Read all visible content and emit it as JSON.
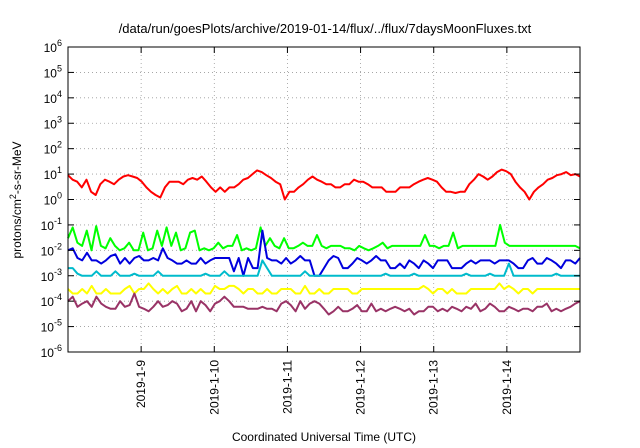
{
  "chart_data": {
    "type": "line",
    "title": "/data/run/goesPlots/archive/2019-01-14/flux/../flux/7daysMoonFluxes.txt",
    "xlabel": "Coordinated Universal Time (UTC)",
    "ylabel": "protons/cm2-s-sr-MeV",
    "ylabel_parts": {
      "pre": "protons/cm",
      "sup": "2",
      "post": "-s-sr-MeV"
    },
    "y_scale": "log",
    "ylim": [
      1e-06,
      1000000.0
    ],
    "y_ticks": [
      {
        "base": "10",
        "exp": "-6"
      },
      {
        "base": "10",
        "exp": "-5"
      },
      {
        "base": "10",
        "exp": "-4"
      },
      {
        "base": "10",
        "exp": "-3"
      },
      {
        "base": "10",
        "exp": "-2"
      },
      {
        "base": "10",
        "exp": "-1"
      },
      {
        "base": "10",
        "exp": "0"
      },
      {
        "base": "10",
        "exp": "1"
      },
      {
        "base": "10",
        "exp": "2"
      },
      {
        "base": "10",
        "exp": "3"
      },
      {
        "base": "10",
        "exp": "4"
      },
      {
        "base": "10",
        "exp": "5"
      },
      {
        "base": "10",
        "exp": "6"
      }
    ],
    "xlim": [
      "2019-01-08T00:00",
      "2019-01-15T00:00"
    ],
    "x_ticks": [
      "2019-1-9",
      "2019-1-10",
      "2019-1-11",
      "2019-1-12",
      "2019-1-13",
      "2019-1-14"
    ],
    "grid": true,
    "legend": "none",
    "series": [
      {
        "color": "#ff0000",
        "values": [
          9,
          6,
          5,
          3,
          6,
          2,
          1.5,
          4,
          6,
          5,
          4,
          6,
          8,
          9,
          8,
          7,
          5,
          3,
          2,
          1.5,
          1.2,
          3,
          5,
          5,
          5,
          4,
          6,
          7,
          6,
          8,
          5,
          3,
          2,
          3,
          2,
          3,
          3,
          4,
          6,
          7,
          10,
          14,
          12,
          9,
          7,
          5,
          4,
          1,
          2,
          2,
          3,
          4,
          6,
          8,
          6,
          5,
          4,
          4,
          3,
          3,
          4,
          4,
          6,
          5,
          5,
          4,
          3,
          3,
          3,
          2,
          2,
          2,
          3,
          3,
          3,
          4,
          5,
          6,
          7,
          6,
          5,
          3,
          2,
          2,
          1.8,
          2,
          2,
          4,
          6,
          10,
          8,
          6,
          8,
          12,
          15,
          13,
          10,
          5,
          3,
          2,
          1,
          2,
          3,
          4,
          6,
          7,
          9,
          10,
          12,
          9,
          10,
          8
        ]
      },
      {
        "color": "#00ff00",
        "values": [
          0.03,
          0.08,
          0.02,
          0.015,
          0.06,
          0.01,
          0.09,
          0.015,
          0.012,
          0.03,
          0.015,
          0.01,
          0.012,
          0.02,
          0.01,
          0.01,
          0.05,
          0.01,
          0.012,
          0.06,
          0.015,
          0.08,
          0.015,
          0.05,
          0.01,
          0.012,
          0.05,
          0.06,
          0.01,
          0.012,
          0.01,
          0.012,
          0.02,
          0.012,
          0.015,
          0.015,
          0.04,
          0.01,
          0.012,
          0.01,
          0.012,
          0.08,
          0.015,
          0.03,
          0.015,
          0.012,
          0.03,
          0.012,
          0.012,
          0.015,
          0.02,
          0.015,
          0.015,
          0.04,
          0.015,
          0.012,
          0.015,
          0.015,
          0.015,
          0.012,
          0.012,
          0.01,
          0.015,
          0.012,
          0.01,
          0.012,
          0.015,
          0.02,
          0.012,
          0.015,
          0.015,
          0.015,
          0.015,
          0.015,
          0.015,
          0.015,
          0.04,
          0.015,
          0.015,
          0.012,
          0.015,
          0.015,
          0.05,
          0.012,
          0.015,
          0.015,
          0.015,
          0.015,
          0.015,
          0.015,
          0.015,
          0.015,
          0.1,
          0.02,
          0.015,
          0.015,
          0.015,
          0.015,
          0.015,
          0.015,
          0.015,
          0.015,
          0.015,
          0.015,
          0.015,
          0.015,
          0.015,
          0.015,
          0.015,
          0.012
        ]
      },
      {
        "color": "#0000dd",
        "values": [
          0.01,
          0.012,
          0.005,
          0.004,
          0.008,
          0.004,
          0.004,
          0.003,
          0.004,
          0.006,
          0.007,
          0.003,
          0.005,
          0.003,
          0.005,
          0.006,
          0.004,
          0.004,
          0.005,
          0.004,
          0.012,
          0.005,
          0.004,
          0.003,
          0.003,
          0.004,
          0.003,
          0.003,
          0.005,
          0.003,
          0.004,
          0.005,
          0.005,
          0.005,
          0.005,
          0.0015,
          0.005,
          0.001,
          0.005,
          0.002,
          0.002,
          0.06,
          0.005,
          0.004,
          0.004,
          0.003,
          0.005,
          0.003,
          0.004,
          0.006,
          0.004,
          0.004,
          0.001,
          0.001,
          0.002,
          0.004,
          0.006,
          0.005,
          0.002,
          0.002,
          0.003,
          0.005,
          0.004,
          0.003,
          0.004,
          0.006,
          0.004,
          0.004,
          0.002,
          0.002,
          0.003,
          0.002,
          0.004,
          0.003,
          0.002,
          0.004,
          0.003,
          0.002,
          0.004,
          0.004,
          0.004,
          0.002,
          0.002,
          0.002,
          0.003,
          0.004,
          0.003,
          0.004,
          0.004,
          0.004,
          0.003,
          0.004,
          0.004,
          0.004,
          0.003,
          0.002,
          0.002,
          0.004,
          0.005,
          0.003,
          0.003,
          0.005,
          0.004,
          0.003,
          0.002,
          0.004,
          0.004,
          0.003,
          0.005
        ]
      },
      {
        "color": "#00bbcc",
        "values": [
          0.002,
          0.002,
          0.0012,
          0.001,
          0.001,
          0.001,
          0.0015,
          0.001,
          0.001,
          0.001,
          0.0015,
          0.001,
          0.001,
          0.001,
          0.0012,
          0.001,
          0.001,
          0.001,
          0.001,
          0.0015,
          0.001,
          0.001,
          0.001,
          0.001,
          0.001,
          0.001,
          0.001,
          0.001,
          0.001,
          0.0012,
          0.001,
          0.001,
          0.001,
          0.0015,
          0.001,
          0.001,
          0.001,
          0.001,
          0.001,
          0.001,
          0.001,
          0.004,
          0.002,
          0.001,
          0.001,
          0.001,
          0.001,
          0.001,
          0.001,
          0.001,
          0.0015,
          0.001,
          0.001,
          0.001,
          0.001,
          0.001,
          0.001,
          0.001,
          0.001,
          0.001,
          0.001,
          0.001,
          0.001,
          0.001,
          0.001,
          0.001,
          0.001,
          0.0012,
          0.001,
          0.001,
          0.001,
          0.001,
          0.001,
          0.0012,
          0.001,
          0.001,
          0.001,
          0.001,
          0.001,
          0.001,
          0.001,
          0.001,
          0.001,
          0.001,
          0.0012,
          0.001,
          0.001,
          0.001,
          0.001,
          0.0012,
          0.001,
          0.001,
          0.001,
          0.003,
          0.001,
          0.001,
          0.001,
          0.001,
          0.001,
          0.001,
          0.001,
          0.001,
          0.001,
          0.0012,
          0.001,
          0.001,
          0.001,
          0.001,
          0.001
        ]
      },
      {
        "color": "#ffff00",
        "values": [
          0.0003,
          0.0002,
          0.0002,
          0.0003,
          0.0002,
          0.0004,
          0.0002,
          0.0002,
          0.0003,
          0.0002,
          0.0002,
          0.0002,
          0.0003,
          0.0004,
          0.0002,
          0.0003,
          0.0003,
          0.0005,
          0.0003,
          0.0002,
          0.0003,
          0.0002,
          0.0003,
          0.0004,
          0.0002,
          0.0002,
          0.0003,
          0.0002,
          0.0003,
          0.0002,
          0.0002,
          0.0004,
          0.0003,
          0.0003,
          0.0004,
          0.0004,
          0.0003,
          0.0002,
          0.0003,
          0.0003,
          0.0002,
          0.0002,
          0.0003,
          0.0002,
          0.0002,
          0.0003,
          0.0003,
          0.0003,
          0.0002,
          0.0002,
          0.0004,
          0.0002,
          0.0002,
          0.0003,
          0.0002,
          0.0002,
          0.0003,
          0.0003,
          0.0003,
          0.0003,
          0.0002,
          0.0002,
          0.0003,
          0.0003,
          0.0003,
          0.0003,
          0.0003,
          0.0003,
          0.0003,
          0.0003,
          0.0003,
          0.0003,
          0.0003,
          0.0003,
          0.0003,
          0.0004,
          0.0003,
          0.0002,
          0.0003,
          0.0003,
          0.0002,
          0.0003,
          0.0002,
          0.0002,
          0.0002,
          0.0003,
          0.0003,
          0.0003,
          0.0003,
          0.0003,
          0.0003,
          0.0005,
          0.0003,
          0.0004,
          0.0003,
          0.0002,
          0.0003,
          0.0003,
          0.0002,
          0.0003,
          0.0003,
          0.0003,
          0.0003,
          0.0003,
          0.0003,
          0.0003,
          0.0003,
          0.0003,
          0.0003
        ]
      },
      {
        "color": "#993366",
        "values": [
          0.0001,
          0.00015,
          6e-05,
          8e-05,
          0.0001,
          6e-05,
          0.00015,
          8e-05,
          6e-05,
          5e-05,
          5e-05,
          0.0001,
          6e-05,
          7e-05,
          0.0002,
          6e-05,
          5e-05,
          4e-05,
          6e-05,
          0.0001,
          6e-05,
          7e-05,
          0.0001,
          8e-05,
          4e-05,
          5e-05,
          0.0001,
          4e-05,
          0.0001,
          7e-05,
          4e-05,
          8e-05,
          0.0001,
          0.00015,
          0.0001,
          6e-05,
          6e-05,
          6e-05,
          5e-05,
          5e-05,
          5e-05,
          6e-05,
          5e-05,
          5e-05,
          4e-05,
          8e-05,
          0.0001,
          7e-05,
          4e-05,
          0.0001,
          5e-05,
          8e-05,
          0.0001,
          8e-05,
          5e-05,
          3e-05,
          4e-05,
          6e-05,
          4e-05,
          4e-05,
          5e-05,
          7e-05,
          4e-05,
          4e-05,
          8e-05,
          4e-05,
          5e-05,
          4e-05,
          5e-05,
          6e-05,
          5e-05,
          4e-05,
          5e-05,
          3e-05,
          4e-05,
          4e-05,
          6e-05,
          6e-05,
          4e-05,
          5e-05,
          4e-05,
          6e-05,
          5e-05,
          4e-05,
          6e-05,
          5e-05,
          8e-05,
          4e-05,
          5e-05,
          8e-05,
          6e-05,
          4e-05,
          4e-05,
          6e-05,
          5e-05,
          4e-05,
          5e-05,
          5e-05,
          4e-05,
          6e-05,
          6e-05,
          8e-05,
          4e-05,
          5e-05,
          4e-05,
          5e-05,
          6e-05,
          8e-05,
          0.0001
        ]
      }
    ]
  }
}
